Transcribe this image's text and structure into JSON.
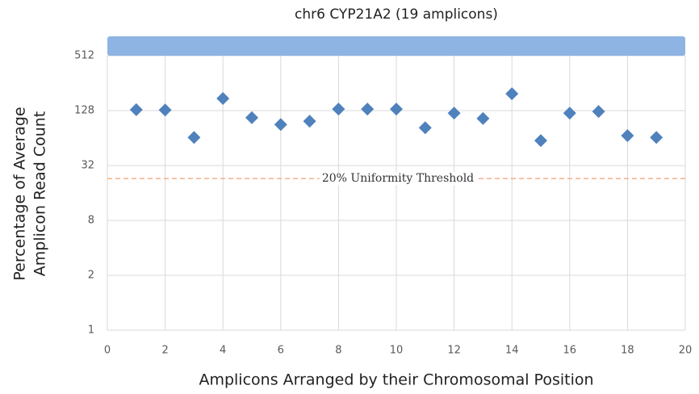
{
  "chart_data": {
    "type": "scatter",
    "title": "chr6 CYP21A2 (19 amplicons)",
    "x_label": "Amplicons Arranged by their Chromosomal Position",
    "y_label_lines": [
      "Percentage of Average",
      "Amplicon Read Count"
    ],
    "x": [
      1,
      2,
      3,
      4,
      5,
      6,
      7,
      8,
      9,
      10,
      11,
      12,
      13,
      14,
      15,
      16,
      17,
      18,
      19
    ],
    "values": [
      131,
      130,
      65,
      174,
      107,
      90,
      98,
      133,
      133,
      133,
      83,
      120,
      105,
      196,
      60,
      120,
      125,
      68,
      65
    ],
    "color": "#4f81bd",
    "xlim": [
      0,
      20
    ],
    "xticks": [
      0,
      2,
      4,
      6,
      8,
      10,
      12,
      14,
      16,
      18,
      20
    ],
    "ylim": [
      0.5,
      512
    ],
    "y_log_base": 2,
    "yticks": [
      {
        "value": 0.5,
        "label": "1"
      },
      2,
      8,
      32,
      128,
      512
    ],
    "grid": true,
    "threshold": {
      "value": 23,
      "label": "20% Uniformity Threshold",
      "color": "#f4b183"
    }
  }
}
